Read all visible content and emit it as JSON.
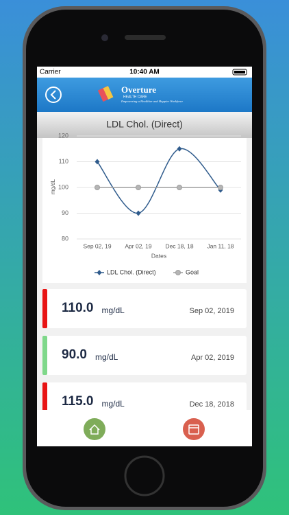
{
  "status_bar": {
    "carrier": "Carrier",
    "time": "10:40 AM"
  },
  "header": {
    "brand": "Overture",
    "subtitle": "HEALTH CARE",
    "tagline": "Empowering a Healthier and Happier Workforce"
  },
  "page_title": "LDL Chol. (Direct)",
  "chart_data": {
    "type": "line",
    "categories": [
      "Sep 02, 19",
      "Apr 02, 19",
      "Dec 18, 18",
      "Jan 11, 18"
    ],
    "series": [
      {
        "name": "LDL Chol. (Direct)",
        "color": "#2f5b8c",
        "values": [
          110,
          90,
          115,
          99
        ]
      },
      {
        "name": "Goal",
        "color": "#9e9e9e",
        "values": [
          100,
          100,
          100,
          100
        ]
      }
    ],
    "ylim": [
      80,
      120
    ],
    "yticks": [
      80,
      90,
      100,
      110,
      120
    ],
    "ylabel": "mg/dL",
    "xlabel": "Dates",
    "grid": true,
    "legend": "bottom"
  },
  "records": [
    {
      "value": "110.0",
      "unit": "mg/dL",
      "date": "Sep 02, 2019",
      "color": "#e81414"
    },
    {
      "value": "90.0",
      "unit": "mg/dL",
      "date": "Apr 02, 2019",
      "color": "#7fd88a"
    },
    {
      "value": "115.0",
      "unit": "mg/dL",
      "date": "Dec 18, 2018",
      "color": "#e81414"
    }
  ]
}
